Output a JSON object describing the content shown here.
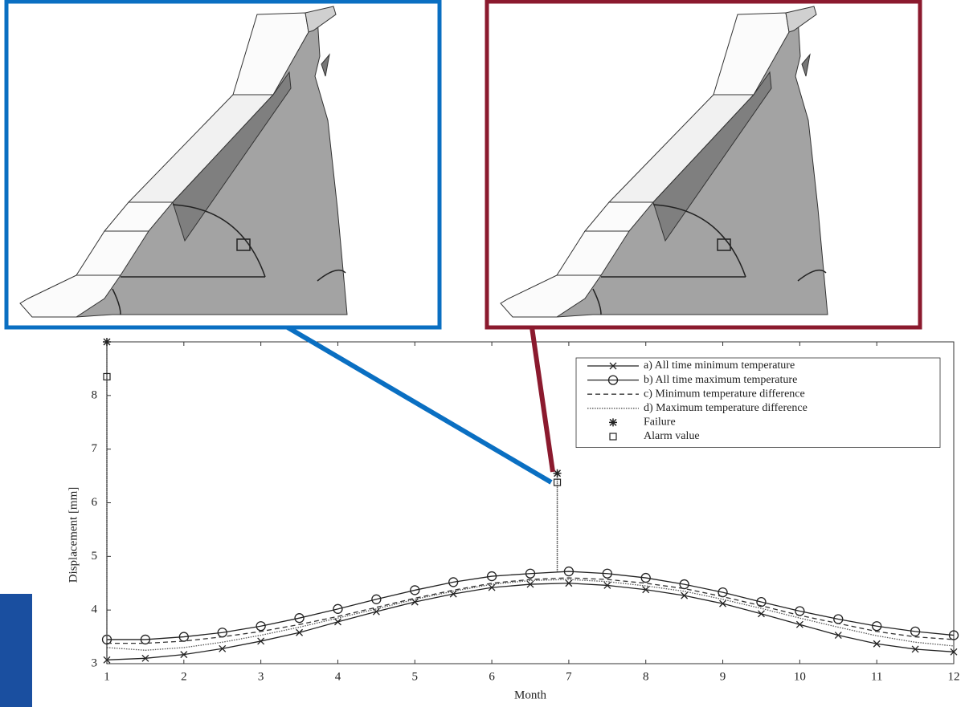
{
  "chart_data": {
    "type": "line",
    "xlabel": "Month",
    "ylabel": "Displacement [mm]",
    "xlim": [
      1,
      12
    ],
    "ylim": [
      3,
      9
    ],
    "xticks": [
      1,
      2,
      3,
      4,
      5,
      6,
      7,
      8,
      9,
      10,
      11,
      12
    ],
    "yticks": [
      3,
      4,
      5,
      6,
      7,
      8
    ],
    "x": [
      1,
      1.5,
      2,
      2.5,
      3,
      3.5,
      4,
      4.5,
      5,
      5.5,
      6,
      6.5,
      7,
      7.5,
      8,
      8.5,
      9,
      9.5,
      10,
      10.5,
      11,
      11.5,
      12
    ],
    "series": [
      {
        "name": "a) All time minimum temperature",
        "color": "#222222",
        "marker": "x",
        "dash": "solid",
        "values": [
          3.07,
          3.1,
          3.17,
          3.28,
          3.42,
          3.58,
          3.78,
          3.97,
          4.15,
          4.3,
          4.42,
          4.48,
          4.5,
          4.46,
          4.38,
          4.27,
          4.12,
          3.93,
          3.73,
          3.53,
          3.37,
          3.27,
          3.22
        ]
      },
      {
        "name": "b) All time maximum temperature",
        "color": "#222222",
        "marker": "o",
        "dash": "solid",
        "values": [
          3.45,
          3.45,
          3.5,
          3.58,
          3.7,
          3.85,
          4.02,
          4.2,
          4.37,
          4.52,
          4.63,
          4.68,
          4.72,
          4.68,
          4.6,
          4.48,
          4.33,
          4.15,
          3.98,
          3.83,
          3.7,
          3.6,
          3.53
        ]
      },
      {
        "name": "c) Minimum temperature difference",
        "color": "#333333",
        "marker": "none",
        "dash": "dashed",
        "values": [
          3.38,
          3.38,
          3.42,
          3.5,
          3.6,
          3.73,
          3.88,
          4.05,
          4.22,
          4.37,
          4.5,
          4.57,
          4.6,
          4.57,
          4.5,
          4.4,
          4.25,
          4.08,
          3.9,
          3.75,
          3.6,
          3.5,
          3.45
        ]
      },
      {
        "name": "d) Maximum temperature difference",
        "color": "#555555",
        "marker": "none",
        "dash": "dotted",
        "values": [
          3.3,
          3.25,
          3.3,
          3.4,
          3.53,
          3.68,
          3.85,
          4.02,
          4.2,
          4.35,
          4.48,
          4.55,
          4.57,
          4.53,
          4.45,
          4.35,
          4.2,
          4.03,
          3.85,
          3.68,
          3.52,
          3.4,
          3.33
        ]
      }
    ],
    "points": [
      {
        "name": "Failure",
        "marker": "asterisk",
        "color": "#222222",
        "x": [
          1,
          6.85
        ],
        "values": [
          9,
          6.55
        ]
      },
      {
        "name": "Alarm value",
        "marker": "square",
        "color": "#222222",
        "x": [
          1,
          6.85
        ],
        "values": [
          8.35,
          6.38
        ]
      }
    ]
  }
}
